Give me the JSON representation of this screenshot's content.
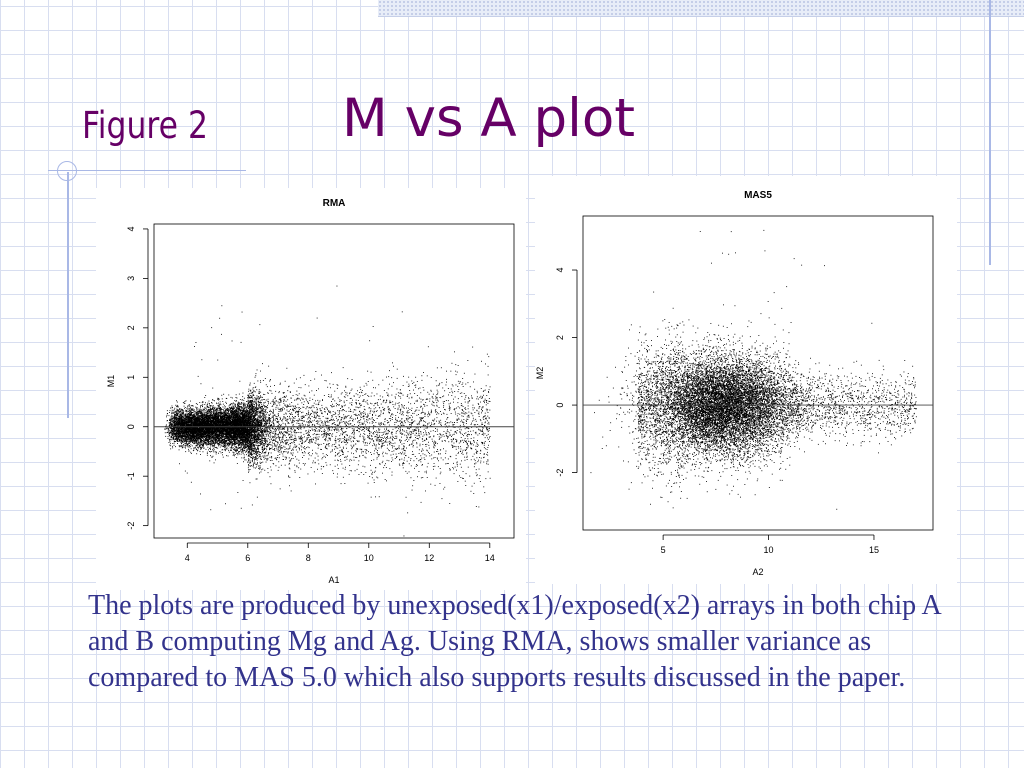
{
  "slide": {
    "figure_label": "Figure 2",
    "title": "M vs A plot",
    "caption": "The plots are produced by unexposed(x1)/exposed(x2) arrays in both chip A and B computing Mg and Ag. Using RMA, shows smaller variance as compared to MAS 5.0 which also supports results discussed in the paper."
  },
  "colors": {
    "title": "#660066",
    "caption": "#33338c",
    "grid": "#d8def0",
    "accent_line": "#a9b8e6"
  },
  "chart_data": [
    {
      "type": "scatter",
      "title": "RMA",
      "xlabel": "A1",
      "ylabel": "M1",
      "xlim": [
        2.9,
        14.8
      ],
      "ylim": [
        -2.25,
        4.1
      ],
      "xticks": [
        4,
        6,
        8,
        10,
        12,
        14
      ],
      "yticks": [
        -2,
        -1,
        0,
        1,
        2,
        3,
        4
      ],
      "reference_line_y": 0,
      "point_cloud": {
        "x_range": [
          3.2,
          14.0
        ],
        "x_dense_center": 5.8,
        "m_center": 0,
        "m_spread_at_low_A": 0.15,
        "m_spread_at_high_A": 0.45,
        "outlier_m_range": [
          -1.8,
          2.9
        ]
      },
      "grid": false
    },
    {
      "type": "scatter",
      "title": "MAS5",
      "xlabel": "A2",
      "ylabel": "M2",
      "xlim": [
        1.2,
        17.8
      ],
      "ylim": [
        -3.7,
        5.6
      ],
      "xticks": [
        5,
        10,
        15
      ],
      "yticks": [
        -2,
        0,
        2,
        4
      ],
      "reference_line_y": 0,
      "point_cloud": {
        "x_range": [
          3.5,
          17.0
        ],
        "x_dense_center": 7.8,
        "m_center": 0,
        "m_spread": 0.85,
        "outlier_m_range": [
          -3.4,
          5.2
        ]
      },
      "grid": false
    }
  ]
}
